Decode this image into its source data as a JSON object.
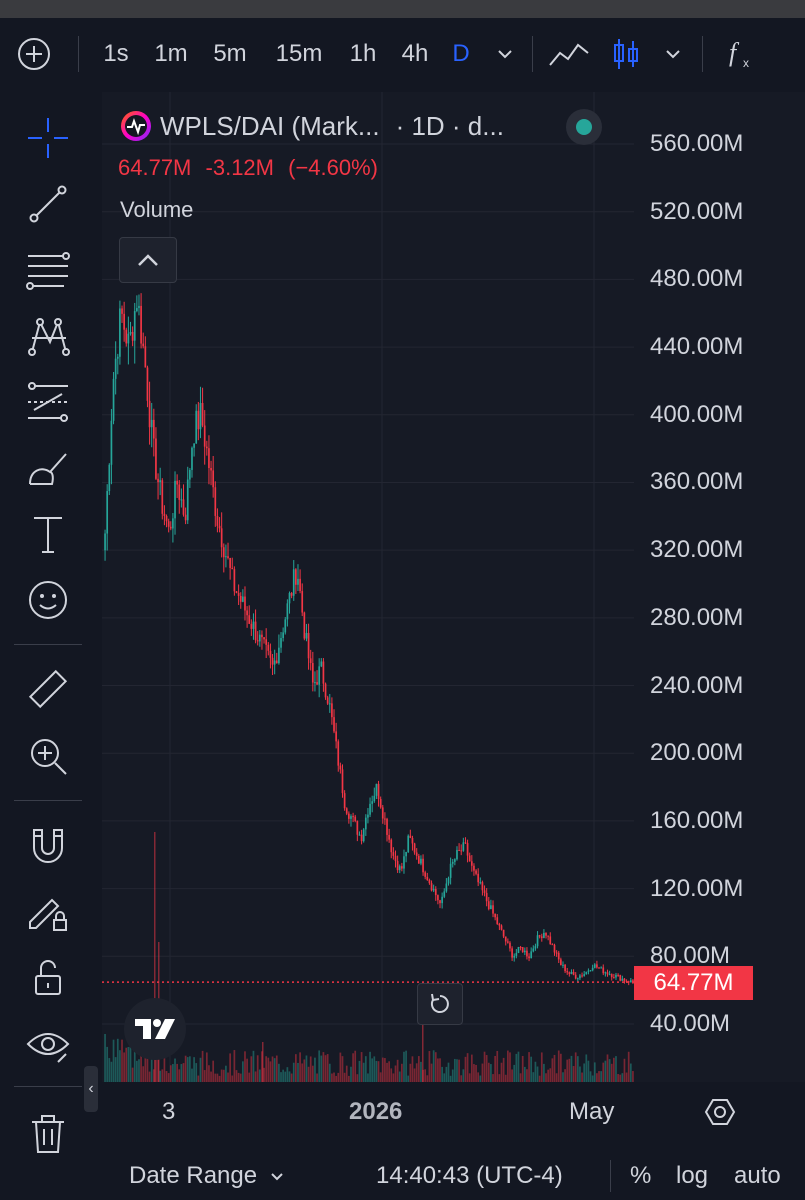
{
  "toolbar": {
    "intervals": [
      "1s",
      "1m",
      "5m",
      "15m",
      "1h",
      "4h",
      "D"
    ],
    "active_interval": "D"
  },
  "legend": {
    "symbol": "WPLS/DAI (Mark...",
    "meta": "· 1D · d...",
    "last": "64.77M",
    "change": "-3.12M",
    "change_pct": "(−4.60%)",
    "volume_label": "Volume"
  },
  "price_axis": {
    "labels": [
      "560.00M",
      "520.00M",
      "480.00M",
      "440.00M",
      "400.00M",
      "360.00M",
      "320.00M",
      "280.00M",
      "240.00M",
      "200.00M",
      "160.00M",
      "120.00M",
      "80.00M",
      "40.00M"
    ],
    "last_price": "64.77M"
  },
  "time_axis": {
    "labels": [
      "3",
      "2026",
      "May"
    ]
  },
  "bottom_bar": {
    "date_range": "Date Range",
    "clock": "14:40:43 (UTC-4)",
    "percent": "%",
    "log": "log",
    "auto": "auto"
  },
  "colors": {
    "up": "#26a69a",
    "down": "#f23645",
    "accent": "#2962ff",
    "background": "#131722"
  },
  "chart_data": {
    "type": "candlestick",
    "title": "WPLS/DAI",
    "y_unit": "M",
    "ylim": [
      20,
      580
    ],
    "x_ticks": [
      "3",
      "2026",
      "May"
    ],
    "series": [
      {
        "name": "WPLS/DAI",
        "close_path": [
          330,
          420,
          460,
          440,
          470,
          430,
          380,
          350,
          330,
          360,
          340,
          390,
          400,
          370,
          340,
          320,
          300,
          290,
          280,
          270,
          260,
          250,
          270,
          290,
          310,
          270,
          240,
          250,
          230,
          200,
          170,
          160,
          150,
          170,
          180,
          160,
          140,
          130,
          150,
          140,
          130,
          120,
          110,
          130,
          140,
          145,
          130,
          120,
          110,
          100,
          90,
          80,
          85,
          80,
          90,
          95,
          85,
          75,
          70,
          68,
          70,
          75,
          72,
          70,
          68,
          66,
          64.77
        ]
      }
    ],
    "last_value": 64.77,
    "last_change": -3.12,
    "last_change_pct": -4.6
  }
}
